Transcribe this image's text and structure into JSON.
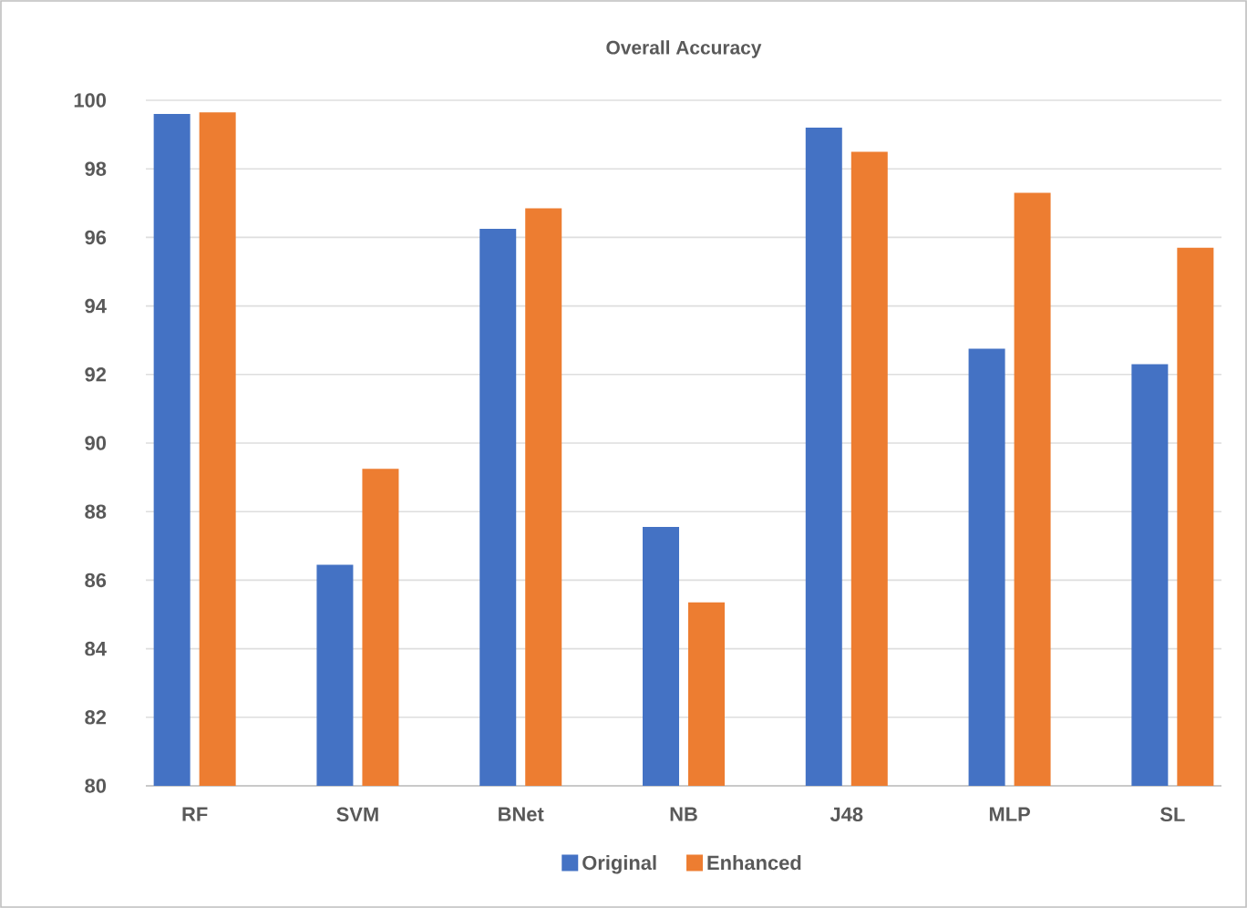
{
  "chart_data": {
    "type": "bar",
    "title": "Overall Accuracy",
    "categories": [
      "RF",
      "SVM",
      "BNet",
      "NB",
      "J48",
      "MLP",
      "SL"
    ],
    "series": [
      {
        "name": "Original",
        "color": "#4472c4",
        "values": [
          99.6,
          86.45,
          96.25,
          87.55,
          99.2,
          92.75,
          92.3
        ]
      },
      {
        "name": "Enhanced",
        "color": "#ed7d31",
        "values": [
          99.65,
          89.25,
          96.85,
          85.35,
          98.5,
          97.3,
          95.7
        ]
      }
    ],
    "ylim": [
      80,
      100
    ],
    "yticks": [
      80,
      82,
      84,
      86,
      88,
      90,
      92,
      94,
      96,
      98,
      100
    ],
    "grid": "y",
    "legend": "bottom"
  }
}
